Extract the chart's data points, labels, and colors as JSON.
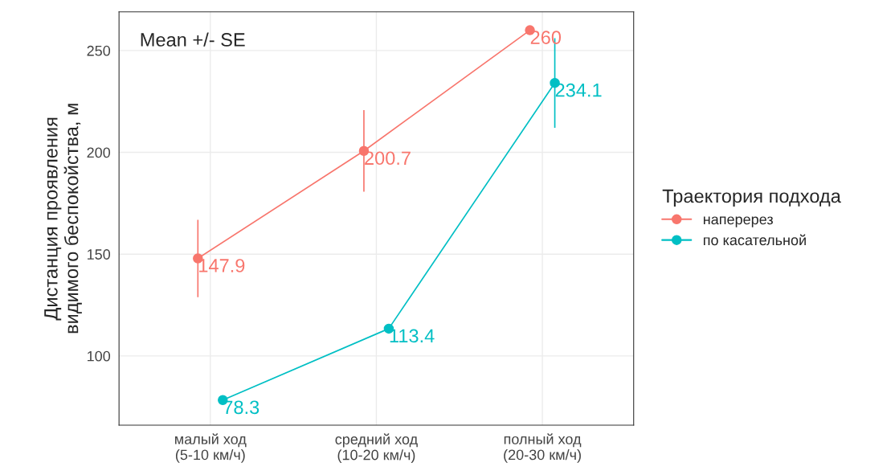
{
  "chart_data": {
    "type": "line",
    "ylabel": "Дистанция проявления\nвидимого беспокойства, м",
    "legend_title": "Траектория подхода",
    "categories": [
      "малый ход\n(5-10 км/ч)",
      "средний ход\n(10-20 км/ч)",
      "полный ход\n(20-30 км/ч)"
    ],
    "series": [
      {
        "name": "наперерез",
        "color": "#f8766d",
        "values": [
          147.9,
          200.7,
          260
        ],
        "errors": [
          19,
          20,
          null
        ]
      },
      {
        "name": "по касательной",
        "color": "#00bfc4",
        "values": [
          78.3,
          113.4,
          234.1
        ],
        "errors": [
          null,
          null,
          22
        ]
      }
    ],
    "data_labels": true,
    "marker": "circle",
    "line_style": "solid",
    "grid": true,
    "legend": "right",
    "ylim": [
      66,
      269
    ],
    "yticks": [
      100,
      150,
      200,
      250
    ],
    "annotations": [
      "Mean +/- SE"
    ]
  }
}
